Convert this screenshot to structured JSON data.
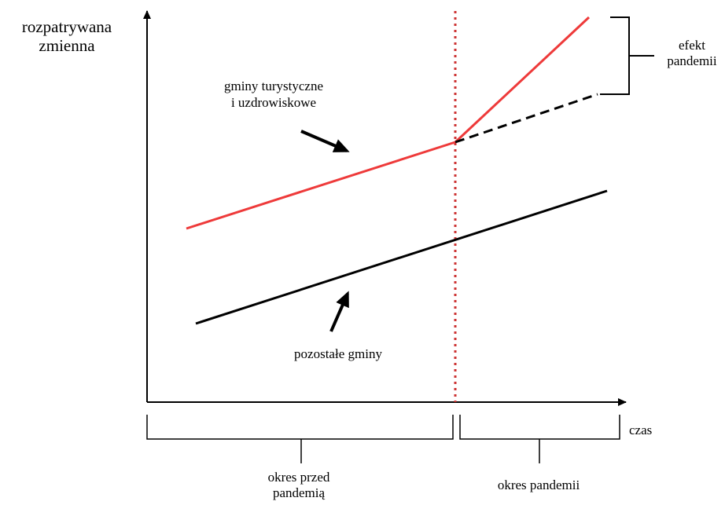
{
  "labels": {
    "y_axis_line1": "rozpatrywana",
    "y_axis_line2": "zmienna",
    "x_axis": "czas",
    "tourist_line1": "gminy turystyczne",
    "tourist_line2": "i uzdrowiskowe",
    "other": "pozostałe gminy",
    "effect_line1": "efekt",
    "effect_line2": "pandemii",
    "period_pre_line1": "okres przed",
    "period_pre_line2": "pandemią",
    "period_pandemic": "okres pandemii"
  },
  "colors": {
    "tourist_line": "#ee3a3a",
    "other_line": "#000000",
    "pandemic_marker": "#cc3333",
    "axes": "#000000"
  },
  "icons": {
    "tourist_pointer": "arrow-down-right-icon",
    "other_pointer": "arrow-up-right-icon"
  }
}
